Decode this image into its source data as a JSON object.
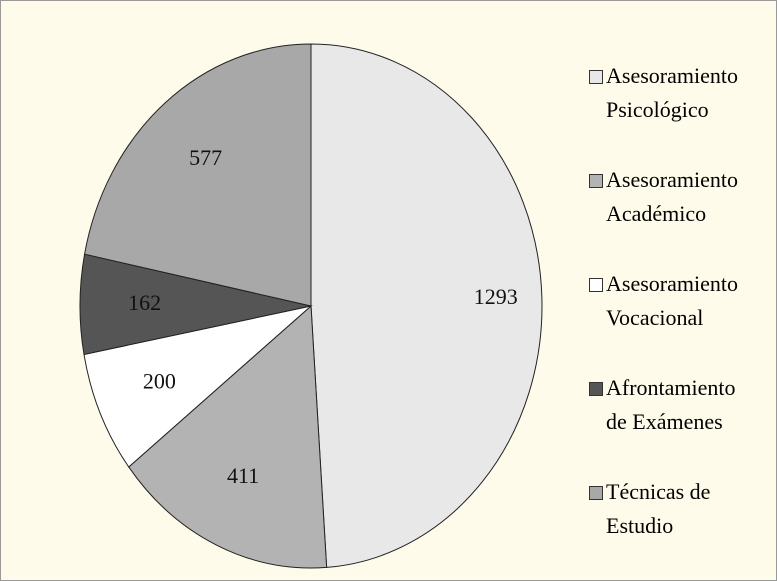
{
  "chart_data": {
    "type": "pie",
    "categories": [
      "Asesoramiento Psicológico",
      "Asesoramiento Académico",
      "Asesoramiento Vocacional",
      "Afrontamiento de Exámenes",
      "Técnicas de Estudio"
    ],
    "values": [
      1293,
      411,
      200,
      162,
      577
    ],
    "colors": [
      "#e8e8e8",
      "#b3b3b3",
      "#ffffff",
      "#555555",
      "#a8a8a8"
    ],
    "legend": "right"
  }
}
